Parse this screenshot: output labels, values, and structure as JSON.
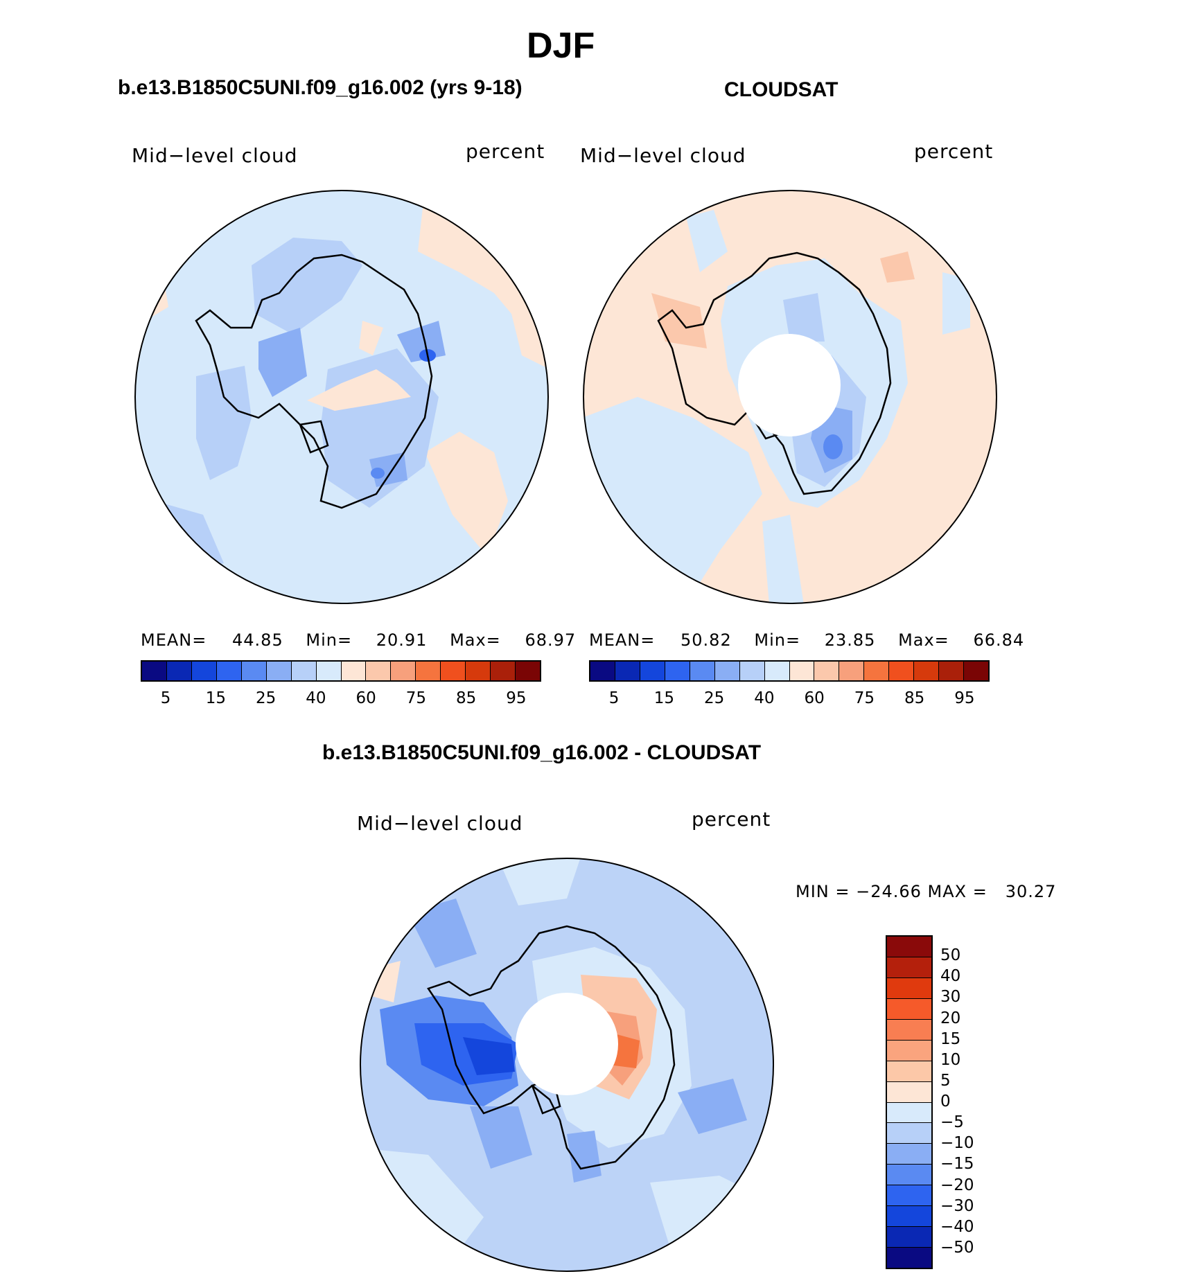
{
  "figure": {
    "season_title": "DJF"
  },
  "panels": [
    {
      "id": "model",
      "header": "b.e13.B1850C5UNI.f09_g16.002 (yrs 9-18)",
      "variable": "Mid−level cloud",
      "units": "percent",
      "stats": {
        "mean_label": "MEAN=",
        "mean": "44.85",
        "min_label": "Min=",
        "min": "20.91",
        "max_label": "Max=",
        "max": "68.97"
      },
      "polar_hole": false,
      "base_color": "#d6e9fb"
    },
    {
      "id": "obs",
      "header": "CLOUDSAT",
      "variable": "Mid−level cloud",
      "units": "percent",
      "stats": {
        "mean_label": "MEAN=",
        "mean": "50.82",
        "min_label": "Min=",
        "min": "23.85",
        "max_label": "Max=",
        "max": "66.84"
      },
      "polar_hole": true,
      "base_color": "#fde6d6"
    },
    {
      "id": "diff",
      "header": "b.e13.B1850C5UNI.f09_g16.002 - CLOUDSAT",
      "variable": "Mid−level cloud",
      "units": "percent",
      "minmax_text": "MIN = −24.66 MAX =   30.27",
      "polar_hole": true,
      "base_color": "#bcd3f7"
    }
  ],
  "colorbars": {
    "absolute": {
      "colors": [
        "#0a0a82",
        "#0a28b4",
        "#1446dc",
        "#2e64f0",
        "#5a8af2",
        "#8aaef4",
        "#b7d0f8",
        "#d8eafb",
        "#fde6d6",
        "#fbc8ac",
        "#f7a07c",
        "#f5743e",
        "#f0501e",
        "#d63a0c",
        "#aa200a",
        "#7a0505"
      ],
      "labels": [
        "5",
        "15",
        "25",
        "40",
        "60",
        "75",
        "85",
        "95"
      ]
    },
    "difference": {
      "colors_top_to_bottom": [
        "#8a0a0a",
        "#b4200c",
        "#e03a0e",
        "#f65a2a",
        "#f87e52",
        "#faa47e",
        "#fcc8a8",
        "#fde6d6",
        "#d8eafb",
        "#b7d0f8",
        "#8aaef4",
        "#5a8af2",
        "#2e64f0",
        "#1446dc",
        "#0a28b4",
        "#0a0a82"
      ],
      "labels_top_to_bottom": [
        "50",
        "40",
        "30",
        "20",
        "15",
        "10",
        "5",
        "0",
        "−5",
        "−10",
        "−15",
        "−20",
        "−30",
        "−40",
        "−50"
      ]
    }
  }
}
